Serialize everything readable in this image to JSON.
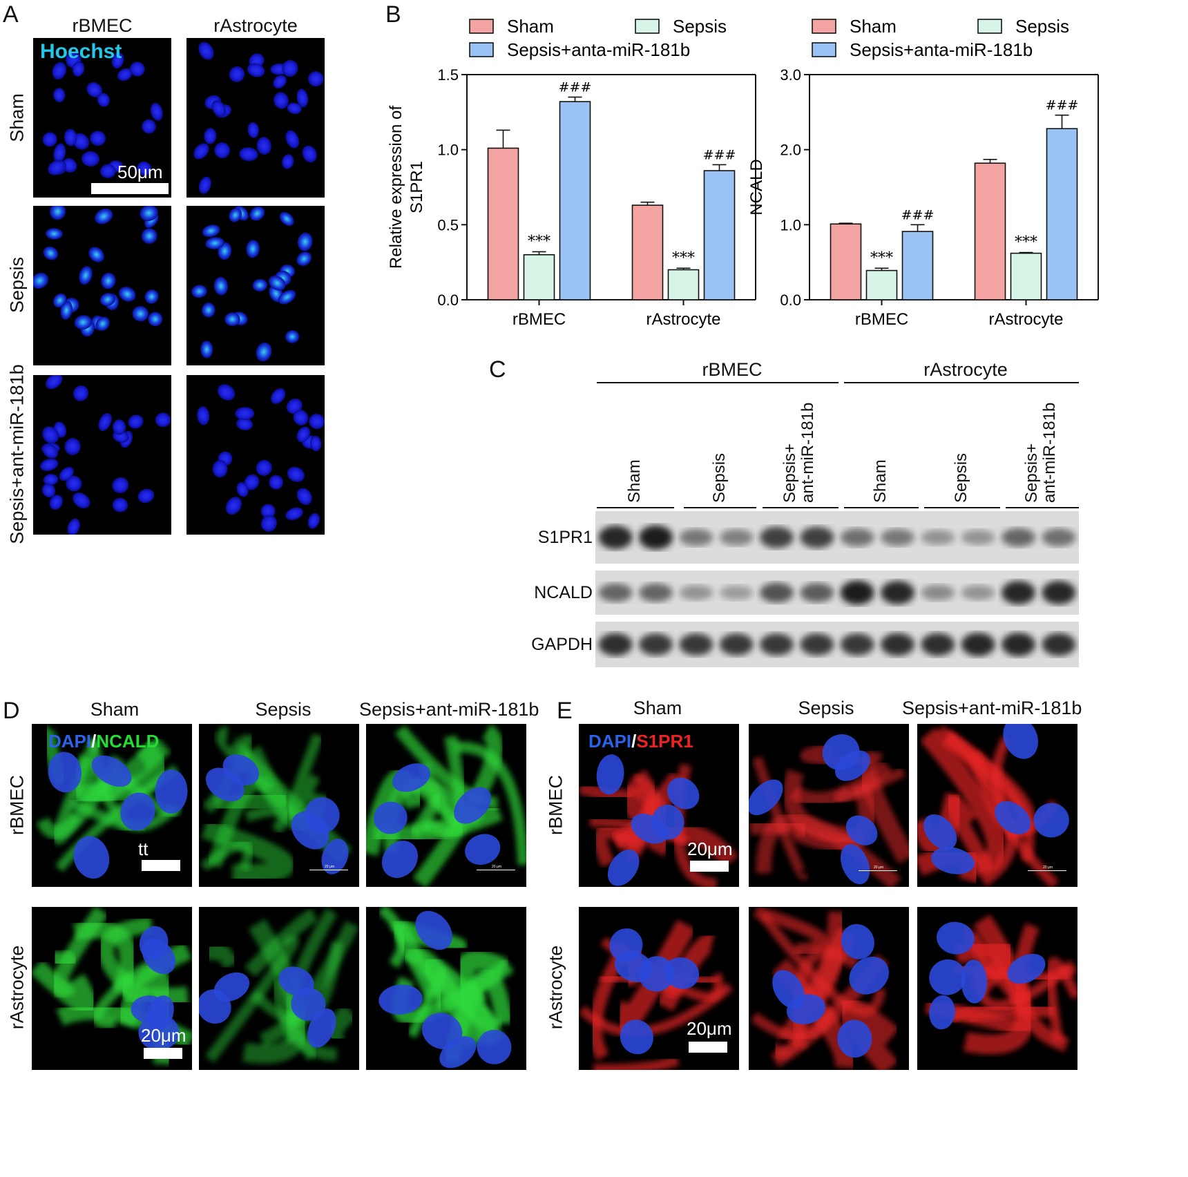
{
  "panelA": {
    "label": "A",
    "col_headers": [
      "rBMEC",
      "rAstrocyte"
    ],
    "row_headers": [
      "Sham",
      "Sepsis",
      "Sepsis+ant-miR-181b"
    ],
    "stain": "Hoechst",
    "scale": "50μm"
  },
  "panelB": {
    "label": "B"
  },
  "chart_data": [
    {
      "type": "bar",
      "categories": [
        "rBMEC",
        "rAstrocyte"
      ],
      "series": [
        {
          "name": "Sham",
          "values": [
            1.01,
            0.63
          ],
          "errors": [
            0.12,
            0.02
          ],
          "color": "#f4a3a3",
          "annot": [
            "",
            ""
          ]
        },
        {
          "name": "Sepsis",
          "values": [
            0.3,
            0.2
          ],
          "errors": [
            0.02,
            0.01
          ],
          "color": "#d6f5e6",
          "annot": [
            "***",
            "***"
          ]
        },
        {
          "name": "Sepsis+anta-miR-181b",
          "values": [
            1.32,
            0.86
          ],
          "errors": [
            0.03,
            0.04
          ],
          "color": "#9ac2f2",
          "annot": [
            "###",
            "###"
          ]
        }
      ],
      "ylabel": [
        "Relative expression of",
        "S1PR1"
      ],
      "ylim": [
        0,
        1.5
      ],
      "yticks": [
        "0.0",
        "0.5",
        "1.0",
        "1.5"
      ],
      "ytick_values": [
        0,
        0.5,
        1.0,
        1.5
      ],
      "legend": "top"
    },
    {
      "type": "bar",
      "categories": [
        "rBMEC",
        "rAstrocyte"
      ],
      "series": [
        {
          "name": "Sham",
          "values": [
            1.01,
            1.82
          ],
          "errors": [
            0.01,
            0.05
          ],
          "color": "#f4a3a3",
          "annot": [
            "",
            ""
          ]
        },
        {
          "name": "Sepsis",
          "values": [
            0.39,
            0.62
          ],
          "errors": [
            0.03,
            0.01
          ],
          "color": "#d6f5e6",
          "annot": [
            "***",
            "***"
          ]
        },
        {
          "name": "Sepsis+anta-miR-181b",
          "values": [
            0.91,
            2.28
          ],
          "errors": [
            0.09,
            0.18
          ],
          "color": "#9ac2f2",
          "annot": [
            "###",
            "###"
          ]
        }
      ],
      "ylabel": [
        "NCALD"
      ],
      "ylim": [
        0,
        3.0
      ],
      "yticks": [
        "0.0",
        "1.0",
        "2.0",
        "3.0"
      ],
      "ytick_values": [
        0,
        1.0,
        2.0,
        3.0
      ],
      "legend": "top"
    }
  ],
  "panelC": {
    "label": "C",
    "groups": [
      "rBMEC",
      "rAstrocyte"
    ],
    "lanes": [
      "Sham",
      "Sepsis",
      "Sepsis+\nant-miR-181b",
      "Sham",
      "Sepsis",
      "Sepsis+\nant-miR-181b"
    ],
    "bands": [
      "S1PR1",
      "NCALD",
      "GAPDH"
    ],
    "intensities": {
      "S1PR1": [
        0.9,
        0.95,
        0.45,
        0.4,
        0.75,
        0.75,
        0.5,
        0.45,
        0.3,
        0.3,
        0.55,
        0.5
      ],
      "NCALD": [
        0.55,
        0.55,
        0.3,
        0.25,
        0.65,
        0.6,
        0.95,
        0.9,
        0.35,
        0.3,
        0.9,
        0.9
      ],
      "GAPDH": [
        0.85,
        0.8,
        0.8,
        0.8,
        0.8,
        0.8,
        0.8,
        0.85,
        0.85,
        0.9,
        0.9,
        0.85
      ]
    }
  },
  "panelD": {
    "label": "D",
    "col_headers": [
      "Sham",
      "Sepsis",
      "Sepsis+ant-miR-181b"
    ],
    "row_headers": [
      "rBMEC",
      "rAstrocyte"
    ],
    "stain_a": "DAPI",
    "stain_sep": "/",
    "stain_b": "NCALD",
    "mark": "tt",
    "scale": "20μm",
    "tiny_scale": "20 μm"
  },
  "panelE": {
    "label": "E",
    "col_headers": [
      "Sham",
      "Sepsis",
      "Sepsis+ant-miR-181b"
    ],
    "row_headers": [
      "rBMEC",
      "rAstrocyte"
    ],
    "stain_a": "DAPI",
    "stain_sep": "/",
    "stain_b": "S1PR1",
    "scale": "20μm",
    "tiny_scale": "20 μm"
  }
}
